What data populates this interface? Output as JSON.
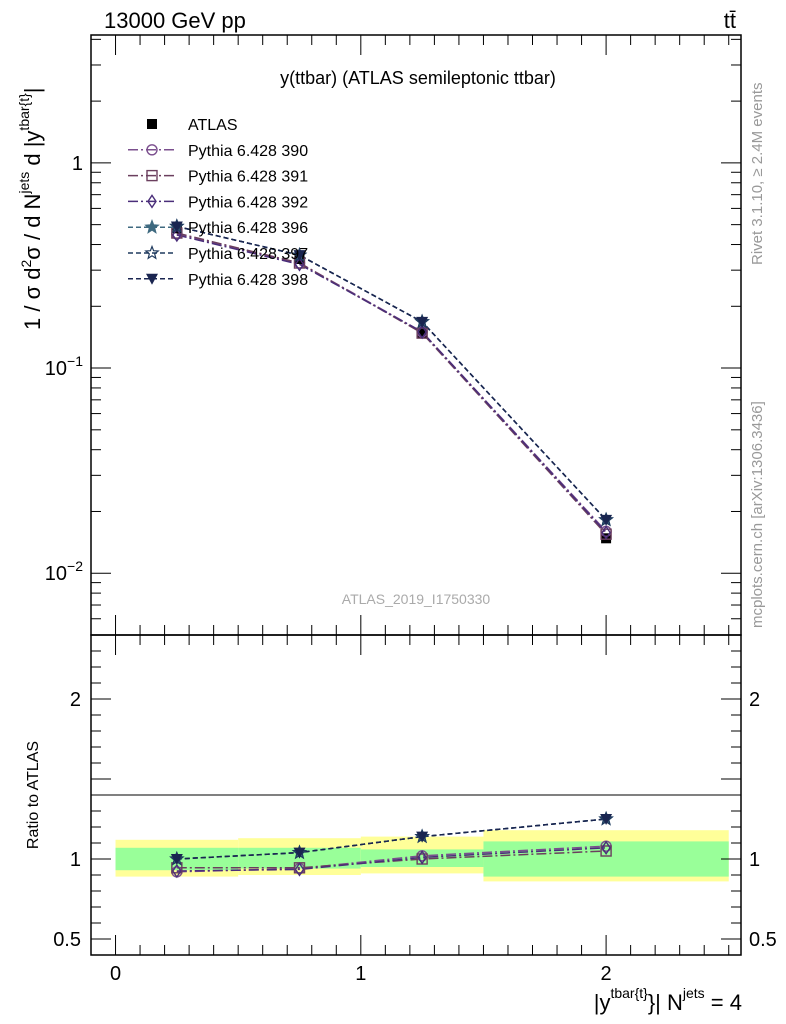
{
  "header": {
    "left": "13000 GeV pp",
    "right": "tt̄"
  },
  "side_labels": {
    "rivet": "Rivet 3.1.10, ≥ 2.4M events",
    "mcplots": "mcplots.cern.ch [arXiv:1306.3436]"
  },
  "colors": {
    "data": "#000000",
    "band_inner": "#99ff99",
    "band_outer": "#ffff99",
    "s390": "#7b4f8e",
    "s391": "#6b3f5e",
    "s392": "#4a2e7a",
    "s396": "#3f6a80",
    "s397": "#1f3a5e",
    "s398": "#1a2550"
  },
  "chart_data": {
    "type": "line",
    "title": "y(ttbar) (ATLAS semileptonic ttbar)",
    "analysis_label": "ATLAS_2019_I1750330",
    "ylabel": "1 / σ d²σ / d N^jets d |y^tbar{t}|",
    "ratio_ylabel": "Ratio to ATLAS",
    "xlabel": "|y^tbar{t}| N^jets = 4",
    "xlim": [
      -0.1,
      2.55
    ],
    "ylim": [
      0.005,
      4.2
    ],
    "yscale": "log",
    "ratio_ylim": [
      0.4,
      2.4
    ],
    "x_ticks": [
      "0",
      "1",
      "2"
    ],
    "y_ticks": [
      "10^-2",
      "10^-1",
      "1"
    ],
    "ratio_ticks": [
      "0.5",
      "1",
      "2"
    ],
    "bins": [
      [
        0,
        0.5
      ],
      [
        0.5,
        1.0
      ],
      [
        1.0,
        1.5
      ],
      [
        1.5,
        2.5
      ]
    ],
    "x": [
      0.25,
      0.75,
      1.25,
      2.0
    ],
    "data": {
      "name": "ATLAS",
      "values": [
        0.48,
        0.34,
        0.148,
        0.0148
      ],
      "band_inner": [
        [
          0.93,
          1.07
        ],
        [
          0.94,
          1.07
        ],
        [
          0.95,
          1.06
        ],
        [
          0.89,
          1.11
        ]
      ],
      "band_outer": [
        [
          0.89,
          1.12
        ],
        [
          0.9,
          1.13
        ],
        [
          0.91,
          1.14
        ],
        [
          0.86,
          1.18
        ]
      ]
    },
    "series": [
      {
        "name": "Pythia 6.428 390",
        "values": [
          0.45,
          0.325,
          0.15,
          0.016
        ],
        "ratio": [
          0.92,
          0.94,
          1.02,
          1.08
        ],
        "marker": "circle-open",
        "dash": "10,3,2,3"
      },
      {
        "name": "Pythia 6.428 391",
        "values": [
          0.455,
          0.325,
          0.148,
          0.0155
        ],
        "ratio": [
          0.945,
          0.945,
          1.0,
          1.05
        ],
        "marker": "square-open",
        "dash": "10,3,2,3"
      },
      {
        "name": "Pythia 6.428 392",
        "values": [
          0.445,
          0.32,
          0.15,
          0.0158
        ],
        "ratio": [
          0.925,
          0.935,
          1.01,
          1.07
        ],
        "marker": "diamond-open",
        "dash": "10,3,2,3"
      },
      {
        "name": "Pythia 6.428 396",
        "values": [
          0.49,
          0.355,
          0.168,
          0.0182
        ],
        "ratio": [
          1.0,
          1.04,
          1.14,
          1.25
        ],
        "marker": "star-filled",
        "dash": "5,3"
      },
      {
        "name": "Pythia 6.428 397",
        "values": [
          0.49,
          0.355,
          0.168,
          0.0182
        ],
        "ratio": [
          1.0,
          1.04,
          1.14,
          1.25
        ],
        "marker": "star-open",
        "dash": "5,3"
      },
      {
        "name": "Pythia 6.428 398",
        "values": [
          0.49,
          0.355,
          0.168,
          0.0182
        ],
        "ratio": [
          1.0,
          1.04,
          1.14,
          1.25
        ],
        "marker": "triangle-down",
        "dash": "5,3"
      }
    ]
  }
}
